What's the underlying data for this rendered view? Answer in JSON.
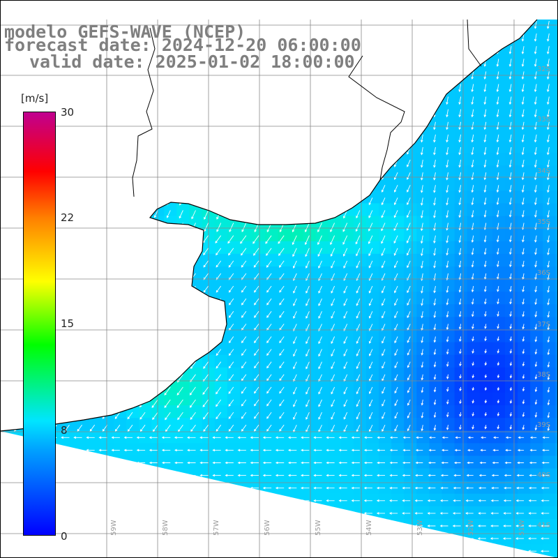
{
  "title": {
    "line1": "modelo GEFS-WAVE (NCEP)",
    "line2": "forecast date: 2024-12-20 06:00:00",
    "line3": "valid date: 2025-01-02 18:00:00"
  },
  "colorbar": {
    "unit": "[m/s]",
    "ticks": [
      "30",
      "22",
      "15",
      "8",
      "0"
    ],
    "min": 0,
    "max": 30
  },
  "grid": {
    "lat_labels": [
      "32S",
      "33S",
      "34S",
      "35S",
      "36S",
      "37S",
      "38S",
      "39S",
      "40S",
      "41S"
    ],
    "lon_labels": [
      "59W",
      "58W",
      "57W",
      "56W",
      "55W",
      "54W",
      "53W",
      "52W",
      "51W"
    ]
  },
  "colors": {
    "title_gray": "#7f7f7f",
    "coast": "#000000",
    "grid": "#888888",
    "arrow": "#ffffff"
  }
}
